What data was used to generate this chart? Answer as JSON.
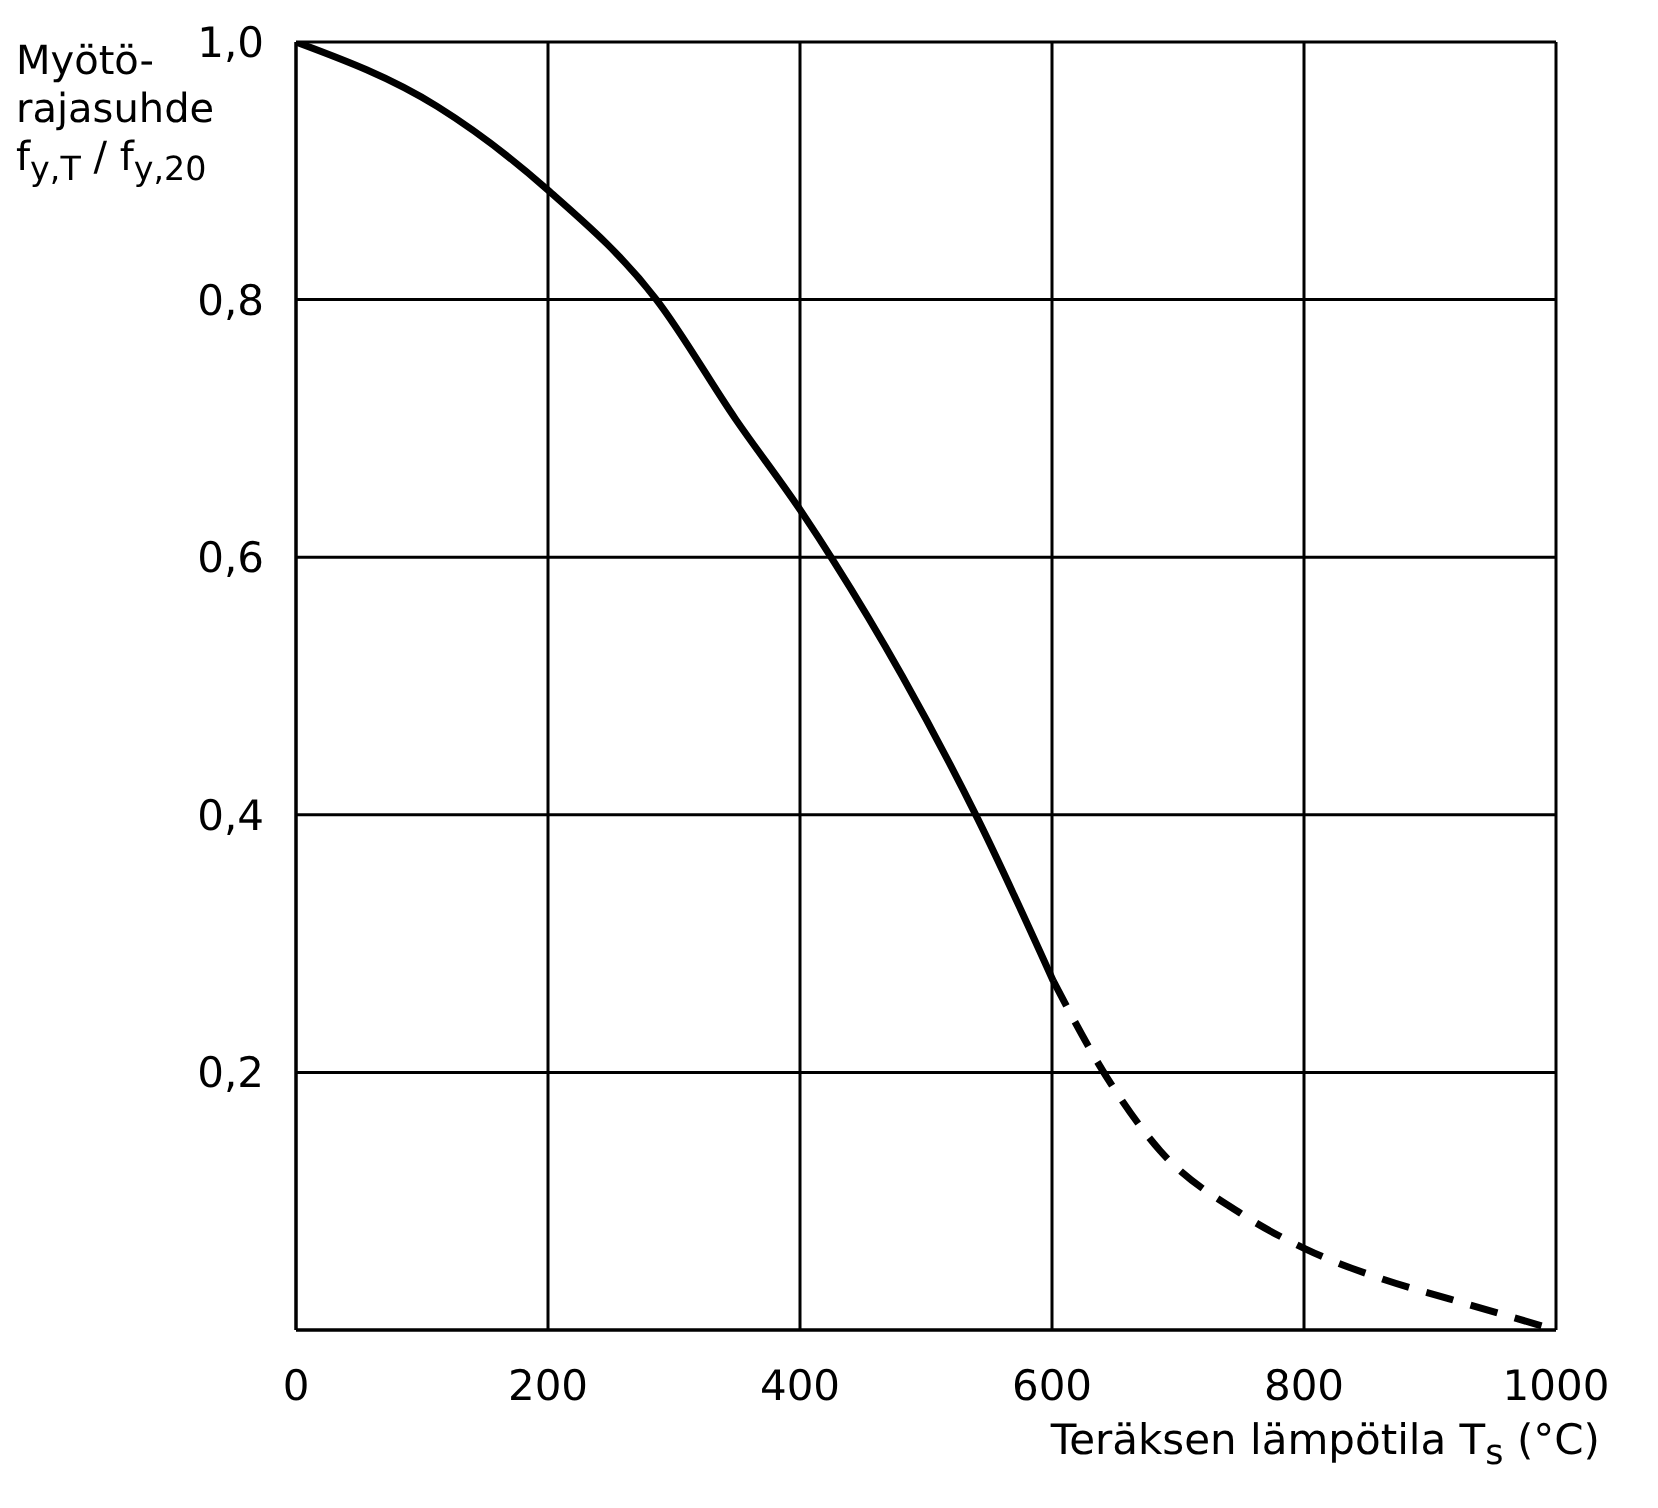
{
  "chart_data": {
    "type": "line",
    "ylabel": "Myötö-\nrajasuhde\nf$_{y,T}$ / f$_{y,20}$",
    "xlabel": "Teräksen lämpötila T$_{s}$ (°C)",
    "xlim": [
      0,
      1000
    ],
    "xticks": [
      0,
      200,
      400,
      600,
      800,
      1000
    ],
    "ylim": [
      0,
      1
    ],
    "yticks": [
      {
        "value": 0,
        "label": null
      },
      {
        "value": 0.2,
        "label": "0,2"
      },
      {
        "value": 0.4,
        "label": "0,4"
      },
      {
        "value": 0.6,
        "label": "0,6"
      },
      {
        "value": 0.8,
        "label": "0,8"
      },
      {
        "value": 1,
        "label": "1,0"
      }
    ],
    "grid": true,
    "series": [
      {
        "color": "#000000",
        "line_style": "solid",
        "x": [
          0,
          112,
          200,
          286,
          349,
          402,
          426,
          481,
          541,
          601
        ],
        "values": [
          1.0,
          0.95,
          0.885,
          0.8,
          0.707,
          0.634,
          0.598,
          0.508,
          0.397,
          0.271
        ]
      },
      {
        "color": "#000000",
        "line_style": "dashed",
        "x": [
          601,
          643,
          686,
          749,
          801,
          864,
          916,
          1000
        ],
        "values": [
          0.271,
          0.197,
          0.139,
          0.091,
          0.063,
          0.039,
          0.024,
          0
        ]
      }
    ]
  }
}
